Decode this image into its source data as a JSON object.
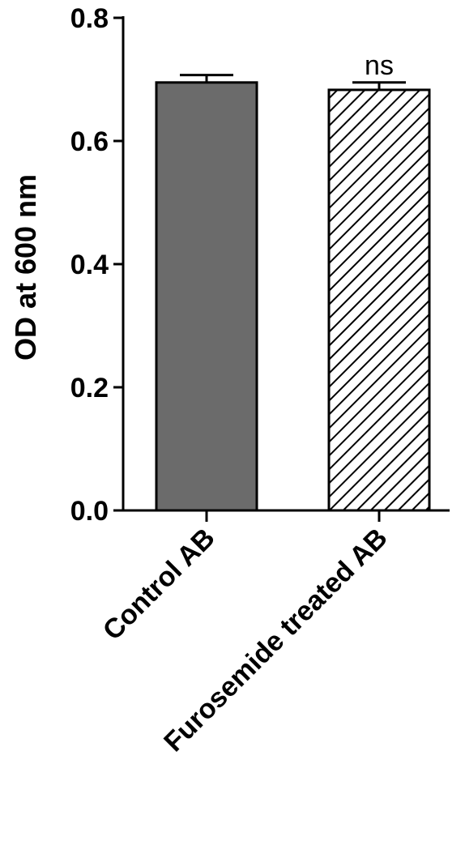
{
  "chart_data": {
    "type": "bar",
    "ylabel": "OD at 600 nm",
    "categories": [
      "Control AB",
      "Furosemide treated AB"
    ],
    "values": [
      0.695,
      0.683
    ],
    "errors": [
      0.012,
      0.012
    ],
    "colors": [
      "#6b6b6b",
      "#ffffff"
    ],
    "patterns": [
      "solid",
      "hatch"
    ],
    "annotations": [
      null,
      "ns"
    ],
    "ylim": [
      0,
      0.8
    ],
    "yticks": [
      {
        "value": 0,
        "label": "0.0"
      },
      0.2,
      0.4,
      0.6,
      0.8
    ]
  }
}
